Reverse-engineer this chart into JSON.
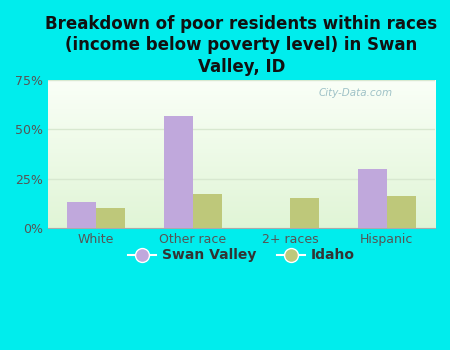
{
  "title": "Breakdown of poor residents within races\n(income below poverty level) in Swan\nValley, ID",
  "categories": [
    "White",
    "Other race",
    "2+ races",
    "Hispanic"
  ],
  "swan_valley": [
    13,
    57,
    0,
    30
  ],
  "idaho": [
    10,
    17,
    15,
    16
  ],
  "swan_valley_color": "#c0a8dc",
  "idaho_color": "#bec87a",
  "background_color": "#00eded",
  "plot_bg_color": "#e8f5e0",
  "ylim": [
    0,
    75
  ],
  "yticks": [
    0,
    25,
    50,
    75
  ],
  "ytick_labels": [
    "0%",
    "25%",
    "50%",
    "75%"
  ],
  "bar_width": 0.3,
  "title_fontsize": 12,
  "tick_fontsize": 9,
  "legend_fontsize": 10,
  "watermark": "City-Data.com",
  "title_color": "#111111",
  "tick_color": "#555555",
  "grid_color": "#d8e8d0"
}
